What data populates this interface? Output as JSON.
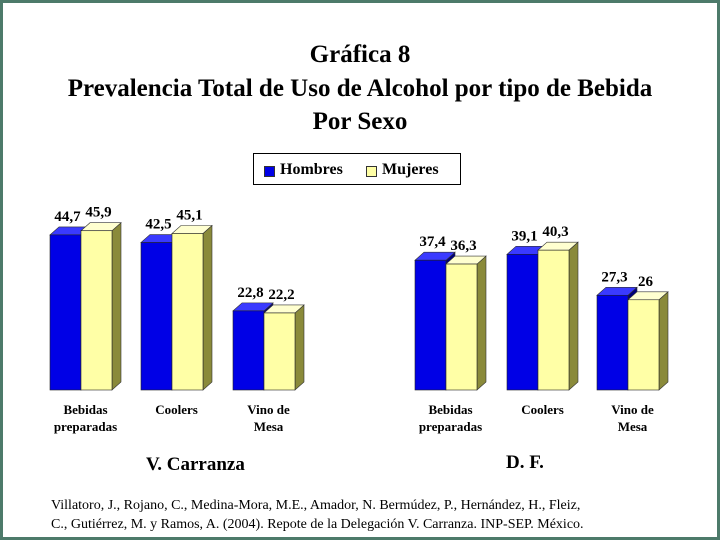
{
  "title": {
    "line1": "Gráfica 8",
    "line2": "Prevalencia Total de Uso de Alcohol por tipo de Bebida",
    "line3": "Por Sexo"
  },
  "legend": {
    "hombres": "Hombres",
    "mujeres": "Mujeres"
  },
  "colors": {
    "hombres": "#0000e6",
    "hombres_side": "#00007a",
    "hombres_top": "#3a3aff",
    "mujeres": "#ffffa6",
    "mujeres_side": "#8a8a3a",
    "mujeres_top": "#ffffd0",
    "frame": "#4d7a6a"
  },
  "footnote": {
    "line1": "Villatoro, J., Rojano, C., Medina-Mora, M.E., Amador, N. Bermúdez, P., Hernández, H., Fleiz,",
    "line2": "C., Gutiérrez, M. y Ramos, A. (2004). Repote de la Delegación V. Carranza. INP-SEP. México."
  },
  "chart_data": [
    {
      "type": "bar",
      "title": "V. Carranza",
      "categories": [
        "Bebidas\npreparadas",
        "Coolers",
        "Vino de\nMesa"
      ],
      "series": [
        {
          "name": "Hombres",
          "values": [
            44.7,
            42.5,
            22.8
          ],
          "labels": [
            "44,7",
            "42,5",
            "22,8"
          ]
        },
        {
          "name": "Mujeres",
          "values": [
            45.9,
            45.1,
            22.2
          ],
          "labels": [
            "45,9",
            "45,1",
            "22,2"
          ]
        }
      ],
      "ylim": [
        0,
        50
      ],
      "grid": false,
      "legend_position": "top"
    },
    {
      "type": "bar",
      "title": "D. F.",
      "categories": [
        "Bebidas\npreparadas",
        "Coolers",
        "Vino de\nMesa"
      ],
      "series": [
        {
          "name": "Hombres",
          "values": [
            37.4,
            39.1,
            27.3
          ],
          "labels": [
            "37,4",
            "39,1",
            "27,3"
          ]
        },
        {
          "name": "Mujeres",
          "values": [
            36.3,
            40.3,
            26
          ],
          "labels": [
            "36,3",
            "40,3",
            "26"
          ]
        }
      ],
      "ylim": [
        0,
        50
      ],
      "grid": false,
      "legend_position": "top"
    }
  ]
}
